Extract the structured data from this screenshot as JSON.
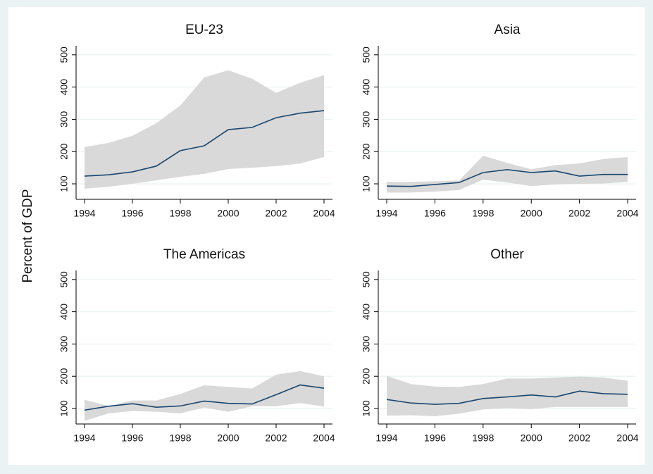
{
  "ylabel": "Percent of GDP",
  "chart_data": [
    {
      "type": "band-line",
      "title": "EU-23",
      "x": [
        1994,
        1995,
        1996,
        1997,
        1998,
        1999,
        2000,
        2001,
        2002,
        2003,
        2004
      ],
      "values": [
        124,
        128,
        137,
        155,
        203,
        218,
        268,
        275,
        305,
        319,
        327
      ],
      "upper": [
        214,
        227,
        249,
        288,
        343,
        430,
        452,
        426,
        382,
        413,
        437
      ],
      "lower": [
        85,
        91,
        100,
        111,
        122,
        131,
        146,
        150,
        155,
        163,
        183
      ],
      "color": "#1a476f",
      "band_color": "#d9d9d9",
      "xlim": [
        1994,
        2004
      ],
      "xticks": [
        1994,
        1996,
        1998,
        2000,
        2002,
        2004
      ],
      "ylim": [
        52,
        528
      ],
      "yticks": [
        100,
        200,
        300,
        400,
        500
      ],
      "grid": true
    },
    {
      "type": "band-line",
      "title": "Asia",
      "x": [
        1994,
        1995,
        1996,
        1997,
        1998,
        1999,
        2000,
        2001,
        2002,
        2003,
        2004
      ],
      "values": [
        93,
        92,
        98,
        104,
        135,
        144,
        135,
        140,
        124,
        129,
        129
      ],
      "upper": [
        106,
        106,
        108,
        110,
        187,
        165,
        145,
        158,
        163,
        177,
        183
      ],
      "lower": [
        73,
        73,
        76,
        81,
        113,
        104,
        93,
        98,
        100,
        101,
        106
      ],
      "color": "#1a476f",
      "band_color": "#d9d9d9",
      "xlim": [
        1994,
        2004
      ],
      "xticks": [
        1994,
        1996,
        1998,
        2000,
        2002,
        2004
      ],
      "ylim": [
        52,
        528
      ],
      "yticks": [
        100,
        200,
        300,
        400,
        500
      ],
      "grid": true
    },
    {
      "type": "band-line",
      "title": "The Americas",
      "x": [
        1994,
        1995,
        1996,
        1997,
        1998,
        1999,
        2000,
        2001,
        2002,
        2003,
        2004
      ],
      "values": [
        95,
        107,
        115,
        104,
        108,
        123,
        116,
        114,
        143,
        173,
        163
      ],
      "upper": [
        127,
        108,
        125,
        125,
        145,
        172,
        167,
        162,
        205,
        216,
        200
      ],
      "lower": [
        62,
        85,
        92,
        90,
        85,
        103,
        90,
        107,
        107,
        117,
        106
      ],
      "color": "#1a476f",
      "band_color": "#d9d9d9",
      "xlim": [
        1994,
        2004
      ],
      "xticks": [
        1994,
        1996,
        1998,
        2000,
        2002,
        2004
      ],
      "ylim": [
        52,
        528
      ],
      "yticks": [
        100,
        200,
        300,
        400,
        500
      ],
      "grid": true
    },
    {
      "type": "band-line",
      "title": "Other",
      "x": [
        1994,
        1995,
        1996,
        1997,
        1998,
        1999,
        2000,
        2001,
        2002,
        2003,
        2004
      ],
      "values": [
        128,
        117,
        113,
        116,
        131,
        136,
        142,
        136,
        154,
        146,
        144
      ],
      "upper": [
        201,
        176,
        168,
        167,
        176,
        193,
        193,
        196,
        199,
        196,
        186
      ],
      "lower": [
        78,
        79,
        76,
        84,
        97,
        101,
        98,
        105,
        105,
        105,
        105
      ],
      "color": "#1a476f",
      "band_color": "#d9d9d9",
      "xlim": [
        1994,
        2004
      ],
      "xticks": [
        1994,
        1996,
        1998,
        2000,
        2002,
        2004
      ],
      "ylim": [
        52,
        528
      ],
      "yticks": [
        100,
        200,
        300,
        400,
        500
      ],
      "grid": true
    }
  ]
}
